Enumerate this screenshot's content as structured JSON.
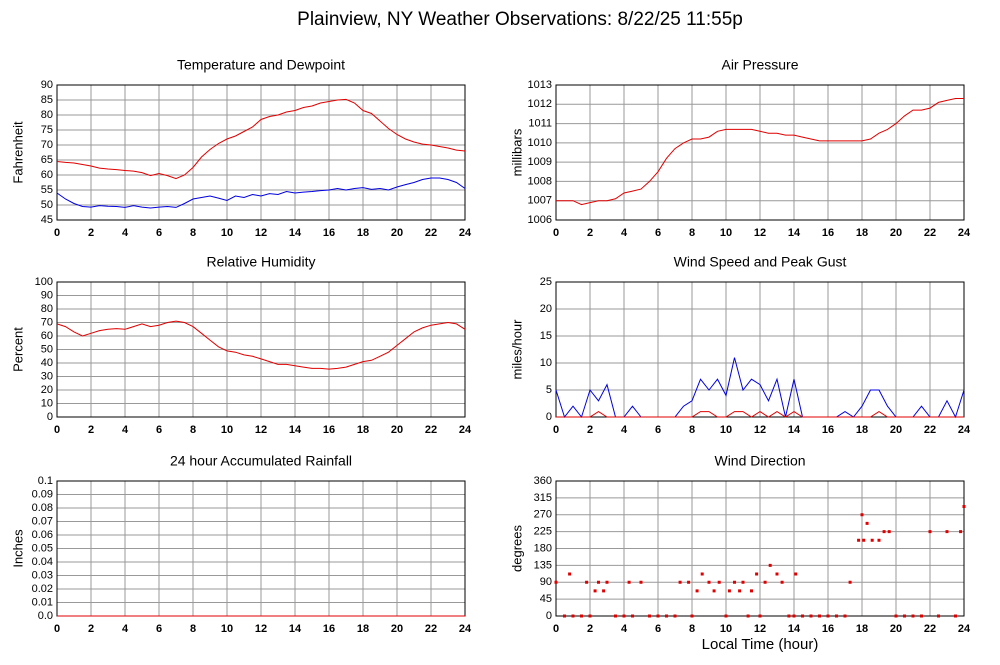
{
  "title": "Plainview, NY Weather Observations: 8/22/25 11:55p",
  "chart_data": [
    {
      "type": "line",
      "title": "Temperature and Dewpoint",
      "ylabel": "Fahrenheit",
      "grid": true,
      "xlim": [
        0,
        24
      ],
      "xticks": [
        0,
        2,
        4,
        6,
        8,
        10,
        12,
        14,
        16,
        18,
        20,
        22,
        24
      ],
      "ylim": [
        45,
        90
      ],
      "yticks": [
        45,
        50,
        55,
        60,
        65,
        70,
        75,
        80,
        85,
        90
      ],
      "x": [
        0,
        0.5,
        1,
        1.5,
        2,
        2.5,
        3,
        3.5,
        4,
        4.5,
        5,
        5.5,
        6,
        6.5,
        7,
        7.5,
        8,
        8.5,
        9,
        9.5,
        10,
        10.5,
        11,
        11.5,
        12,
        12.5,
        13,
        13.5,
        14,
        14.5,
        15,
        15.5,
        16,
        16.5,
        17,
        17.5,
        18,
        18.5,
        19,
        19.5,
        20,
        20.5,
        21,
        21.5,
        22,
        22.5,
        23,
        23.5,
        24
      ],
      "series": [
        {
          "color": "#e00000",
          "values": [
            64.5,
            64.2,
            64,
            63.5,
            63,
            62.3,
            62,
            61.8,
            61.5,
            61.3,
            60.8,
            59.8,
            60.5,
            59.8,
            58.8,
            60,
            62.5,
            66,
            68.5,
            70.5,
            72,
            73,
            74.5,
            76,
            78.5,
            79.5,
            80,
            81,
            81.5,
            82.5,
            83,
            84,
            84.5,
            85,
            85.2,
            84,
            81.5,
            80.5,
            78,
            75.5,
            73.5,
            72,
            71,
            70.3,
            70,
            69.5,
            69,
            68.3,
            68
          ]
        },
        {
          "color": "#0000e0",
          "values": [
            54,
            52,
            50.5,
            49.5,
            49.3,
            49.8,
            49.6,
            49.5,
            49.2,
            49.8,
            49.3,
            49,
            49.3,
            49.5,
            49.2,
            50.5,
            52,
            52.5,
            53,
            52.3,
            51.5,
            53,
            52.5,
            53.5,
            53,
            53.8,
            53.5,
            54.5,
            54,
            54.3,
            54.5,
            54.8,
            55,
            55.5,
            55,
            55.5,
            55.8,
            55.2,
            55.5,
            55,
            56,
            56.8,
            57.5,
            58.5,
            59,
            59,
            58.5,
            57.5,
            55.5
          ]
        }
      ]
    },
    {
      "type": "line",
      "title": "Air Pressure",
      "ylabel": "millibars",
      "grid": true,
      "xlim": [
        0,
        24
      ],
      "xticks": [
        0,
        2,
        4,
        6,
        8,
        10,
        12,
        14,
        16,
        18,
        20,
        22,
        24
      ],
      "ylim": [
        1006,
        1013
      ],
      "yticks": [
        1006,
        1007,
        1008,
        1009,
        1010,
        1011,
        1012,
        1013
      ],
      "x": [
        0,
        0.5,
        1,
        1.5,
        2,
        2.5,
        3,
        3.5,
        4,
        4.5,
        5,
        5.5,
        6,
        6.5,
        7,
        7.5,
        8,
        8.5,
        9,
        9.5,
        10,
        10.5,
        11,
        11.5,
        12,
        12.5,
        13,
        13.5,
        14,
        14.5,
        15,
        15.5,
        16,
        16.5,
        17,
        17.5,
        18,
        18.5,
        19,
        19.5,
        20,
        20.5,
        21,
        21.5,
        22,
        22.5,
        23,
        23.5,
        24
      ],
      "series": [
        {
          "color": "#e00000",
          "values": [
            1007,
            1007,
            1007,
            1006.8,
            1006.9,
            1007,
            1007,
            1007.1,
            1007.4,
            1007.5,
            1007.6,
            1008,
            1008.5,
            1009.2,
            1009.7,
            1010,
            1010.2,
            1010.2,
            1010.3,
            1010.6,
            1010.7,
            1010.7,
            1010.7,
            1010.7,
            1010.6,
            1010.5,
            1010.5,
            1010.4,
            1010.4,
            1010.3,
            1010.2,
            1010.1,
            1010.1,
            1010.1,
            1010.1,
            1010.1,
            1010.1,
            1010.2,
            1010.5,
            1010.7,
            1011,
            1011.4,
            1011.7,
            1011.7,
            1011.8,
            1012.1,
            1012.2,
            1012.3,
            1012.3
          ]
        }
      ]
    },
    {
      "type": "line",
      "title": "Relative Humidity",
      "ylabel": "Percent",
      "grid": true,
      "xlim": [
        0,
        24
      ],
      "xticks": [
        0,
        2,
        4,
        6,
        8,
        10,
        12,
        14,
        16,
        18,
        20,
        22,
        24
      ],
      "ylim": [
        0,
        100
      ],
      "yticks": [
        0,
        10,
        20,
        30,
        40,
        50,
        60,
        70,
        80,
        90,
        100
      ],
      "x": [
        0,
        0.5,
        1,
        1.5,
        2,
        2.5,
        3,
        3.5,
        4,
        4.5,
        5,
        5.5,
        6,
        6.5,
        7,
        7.5,
        8,
        8.5,
        9,
        9.5,
        10,
        10.5,
        11,
        11.5,
        12,
        12.5,
        13,
        13.5,
        14,
        14.5,
        15,
        15.5,
        16,
        16.5,
        17,
        17.5,
        18,
        18.5,
        19,
        19.5,
        20,
        20.5,
        21,
        21.5,
        22,
        22.5,
        23,
        23.5,
        24
      ],
      "series": [
        {
          "color": "#e00000",
          "values": [
            69,
            67,
            63,
            60,
            62,
            64,
            65,
            65.5,
            65,
            67,
            69,
            67,
            68,
            70,
            71,
            70,
            67,
            62,
            57,
            52,
            49,
            48,
            46,
            45,
            43,
            41,
            39,
            39,
            38,
            37,
            36,
            36,
            35.5,
            36,
            37,
            39,
            41,
            42,
            45,
            48,
            53,
            58,
            63,
            66,
            68,
            69,
            70,
            69,
            65
          ]
        }
      ]
    },
    {
      "type": "line",
      "title": "Wind Speed and Peak Gust",
      "ylabel": "miles/hour",
      "grid": true,
      "xlim": [
        0,
        24
      ],
      "xticks": [
        0,
        2,
        4,
        6,
        8,
        10,
        12,
        14,
        16,
        18,
        20,
        22,
        24
      ],
      "ylim": [
        0,
        25
      ],
      "yticks": [
        0,
        5,
        10,
        15,
        20,
        25
      ],
      "x": [
        0,
        0.5,
        1,
        1.5,
        2,
        2.5,
        3,
        3.5,
        4,
        4.5,
        5,
        5.5,
        6,
        6.5,
        7,
        7.5,
        8,
        8.5,
        9,
        9.5,
        10,
        10.5,
        11,
        11.5,
        12,
        12.5,
        13,
        13.5,
        14,
        14.5,
        15,
        15.5,
        16,
        16.5,
        17,
        17.5,
        18,
        18.5,
        19,
        19.5,
        20,
        20.5,
        21,
        21.5,
        22,
        22.5,
        23,
        23.5,
        24
      ],
      "series": [
        {
          "color": "#0000e0",
          "values": [
            5,
            0,
            2,
            0,
            5,
            3,
            6,
            0,
            0,
            2,
            0,
            0,
            0,
            0,
            0,
            2,
            3,
            7,
            5,
            7,
            4,
            11,
            5,
            7,
            6,
            3,
            7,
            0,
            7,
            0,
            0,
            0,
            0,
            0,
            1,
            0,
            2,
            5,
            5,
            2,
            0,
            0,
            0,
            2,
            0,
            0,
            3,
            0,
            5
          ]
        },
        {
          "color": "#e00000",
          "values": [
            0,
            0,
            0,
            0,
            0,
            1,
            0,
            0,
            0,
            0,
            0,
            0,
            0,
            0,
            0,
            0,
            0,
            1,
            1,
            0,
            0,
            1,
            1,
            0,
            1,
            0,
            1,
            0,
            1,
            0,
            0,
            0,
            0,
            0,
            0,
            0,
            0,
            0,
            1,
            0,
            0,
            0,
            0,
            0,
            0,
            0,
            0,
            0,
            0
          ]
        }
      ]
    },
    {
      "type": "line",
      "title": "24 hour Accumulated Rainfall",
      "ylabel": "Inches",
      "grid": true,
      "xlim": [
        0,
        24
      ],
      "xticks": [
        0,
        2,
        4,
        6,
        8,
        10,
        12,
        14,
        16,
        18,
        20,
        22,
        24
      ],
      "ylim": [
        0,
        0.1
      ],
      "yticks": [
        {
          "value": 0,
          "label": "0.0"
        },
        0.01,
        0.02,
        0.03,
        0.04,
        0.05,
        0.06,
        0.07,
        0.08,
        0.09,
        0.1
      ],
      "x": [
        0,
        24
      ],
      "series": [
        {
          "color": "#e00000",
          "values": [
            0,
            0
          ]
        }
      ]
    },
    {
      "type": "scatter",
      "title": "Wind Direction",
      "ylabel": "degrees",
      "xlabel": "Local Time (hour)",
      "grid": true,
      "xlim": [
        0,
        24
      ],
      "xticks": [
        0,
        2,
        4,
        6,
        8,
        10,
        12,
        14,
        16,
        18,
        20,
        22,
        24
      ],
      "ylim": [
        0,
        360
      ],
      "yticks": [
        0,
        45,
        90,
        135,
        180,
        225,
        270,
        315,
        360
      ],
      "x": [
        0,
        0.5,
        0.8,
        1,
        1.5,
        1.8,
        2,
        2.3,
        2.5,
        2.8,
        3,
        3.5,
        4,
        4.3,
        4.5,
        5,
        5.5,
        6,
        6.5,
        7,
        7.3,
        7.8,
        8,
        8.3,
        8.6,
        9,
        9.3,
        9.6,
        10,
        10.2,
        10.5,
        10.8,
        11,
        11.3,
        11.5,
        11.8,
        12,
        12.3,
        12.6,
        13,
        13.3,
        13.7,
        14,
        14.1,
        14.5,
        15,
        15.5,
        16,
        16.5,
        17,
        17.3,
        17.8,
        18,
        18.1,
        18.3,
        18.6,
        19,
        19.3,
        19.6,
        20,
        20.5,
        21,
        21.5,
        22,
        22.5,
        23,
        23.5,
        23.8,
        24
      ],
      "series": [
        {
          "color": "#e00000",
          "values": [
            90,
            0,
            112,
            0,
            0,
            90,
            0,
            67,
            90,
            67,
            90,
            0,
            0,
            90,
            0,
            90,
            0,
            0,
            0,
            0,
            90,
            90,
            0,
            67,
            112,
            90,
            67,
            90,
            0,
            67,
            90,
            67,
            90,
            0,
            67,
            112,
            0,
            90,
            135,
            112,
            90,
            0,
            0,
            112,
            0,
            0,
            0,
            0,
            0,
            0,
            90,
            202,
            270,
            202,
            247,
            202,
            202,
            225,
            225,
            0,
            0,
            0,
            0,
            225,
            0,
            225,
            0,
            225,
            292
          ]
        }
      ]
    }
  ]
}
